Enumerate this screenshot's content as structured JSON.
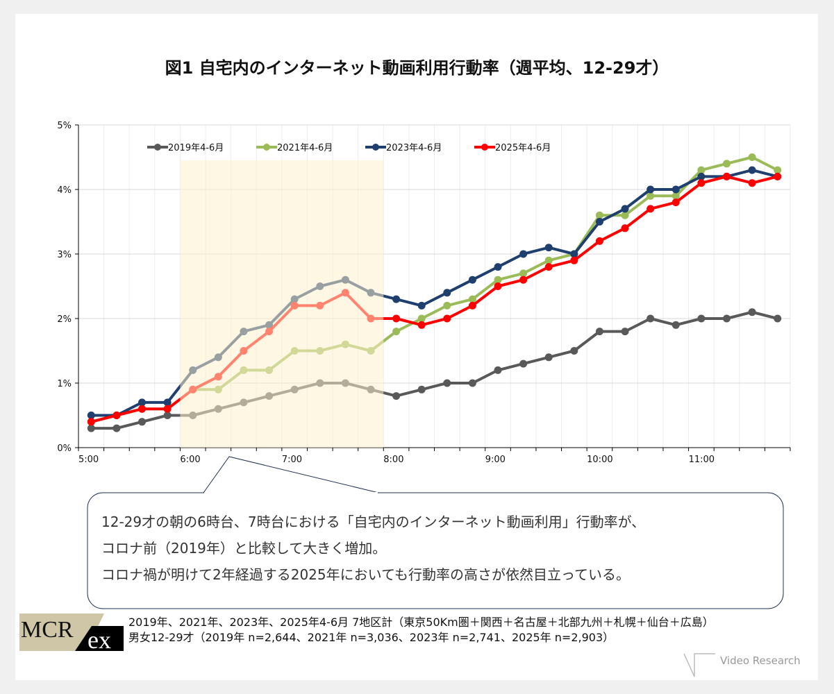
{
  "chart_data": {
    "type": "line",
    "title": "図1 自宅内のインターネット動画利用行動率（週平均、12-29才）",
    "x": [
      "5:00",
      "5:15",
      "5:30",
      "5:45",
      "6:00",
      "6:15",
      "6:30",
      "6:45",
      "7:00",
      "7:15",
      "7:30",
      "7:45",
      "8:00",
      "8:15",
      "8:30",
      "8:45",
      "9:00",
      "9:15",
      "9:30",
      "9:45",
      "10:00",
      "10:15",
      "10:30",
      "10:45",
      "11:00",
      "11:15",
      "11:30",
      "11:45"
    ],
    "x_tick_labels": [
      "5:00",
      "6:00",
      "7:00",
      "8:00",
      "9:00",
      "10:00",
      "11:00"
    ],
    "y_tick_labels": [
      "0%",
      "1%",
      "2%",
      "3%",
      "4%",
      "5%"
    ],
    "ylim": [
      0,
      5
    ],
    "y_unit": "%",
    "grid": true,
    "legend_position": "top",
    "highlight_range": [
      "6:00",
      "7:45"
    ],
    "highlight_color": "#fdf0cc",
    "series": [
      {
        "name": "2019年4-6月",
        "color": "#595959",
        "values": [
          0.3,
          0.3,
          0.4,
          0.5,
          0.5,
          0.6,
          0.7,
          0.8,
          0.9,
          1.0,
          1.0,
          0.9,
          0.8,
          0.9,
          1.0,
          1.0,
          1.2,
          1.3,
          1.4,
          1.5,
          1.8,
          1.8,
          2.0,
          1.9,
          2.0,
          2.0,
          2.1,
          2.0
        ]
      },
      {
        "name": "2021年4-6月",
        "color": "#9bbb59",
        "values": [
          0.4,
          0.5,
          0.6,
          0.6,
          0.9,
          0.9,
          1.2,
          1.2,
          1.5,
          1.5,
          1.6,
          1.5,
          1.8,
          2.0,
          2.2,
          2.3,
          2.6,
          2.7,
          2.9,
          3.0,
          3.6,
          3.6,
          3.9,
          3.9,
          4.3,
          4.4,
          4.5,
          4.3
        ]
      },
      {
        "name": "2023年4-6月",
        "color": "#1f3f6e",
        "values": [
          0.5,
          0.5,
          0.7,
          0.7,
          1.2,
          1.4,
          1.8,
          1.9,
          2.3,
          2.5,
          2.6,
          2.4,
          2.3,
          2.2,
          2.4,
          2.6,
          2.8,
          3.0,
          3.1,
          3.0,
          3.5,
          3.7,
          4.0,
          4.0,
          4.2,
          4.2,
          4.3,
          4.2
        ]
      },
      {
        "name": "2025年4-6月",
        "color": "#ff0000",
        "values": [
          0.4,
          0.5,
          0.6,
          0.6,
          0.9,
          1.1,
          1.5,
          1.8,
          2.2,
          2.2,
          2.4,
          2.0,
          2.0,
          1.9,
          2.0,
          2.2,
          2.5,
          2.6,
          2.8,
          2.9,
          3.2,
          3.4,
          3.7,
          3.8,
          4.1,
          4.2,
          4.1,
          4.2
        ]
      }
    ]
  },
  "callout": [
    "12-29才の朝の6時台、7時台における「自宅内のインターネット動画利用」行動率が、",
    "コロナ前（2019年）と比較して大きく増加。",
    "コロナ禍が明けて2年経過する2025年においても行動率の高さが依然目立っている。"
  ],
  "logo": "MCR ex",
  "notes": [
    "2019年、2021年、2023年、2025年4-6月 7地区計（東京50Km圏＋関西＋名古屋＋北部九州＋札幌＋仙台＋広島）",
    "男女12-29才（2019年 n=2,644、2021年 n=3,036、2023年 n=2,741、2025年 n=2,903）"
  ],
  "brand": "Video Research"
}
